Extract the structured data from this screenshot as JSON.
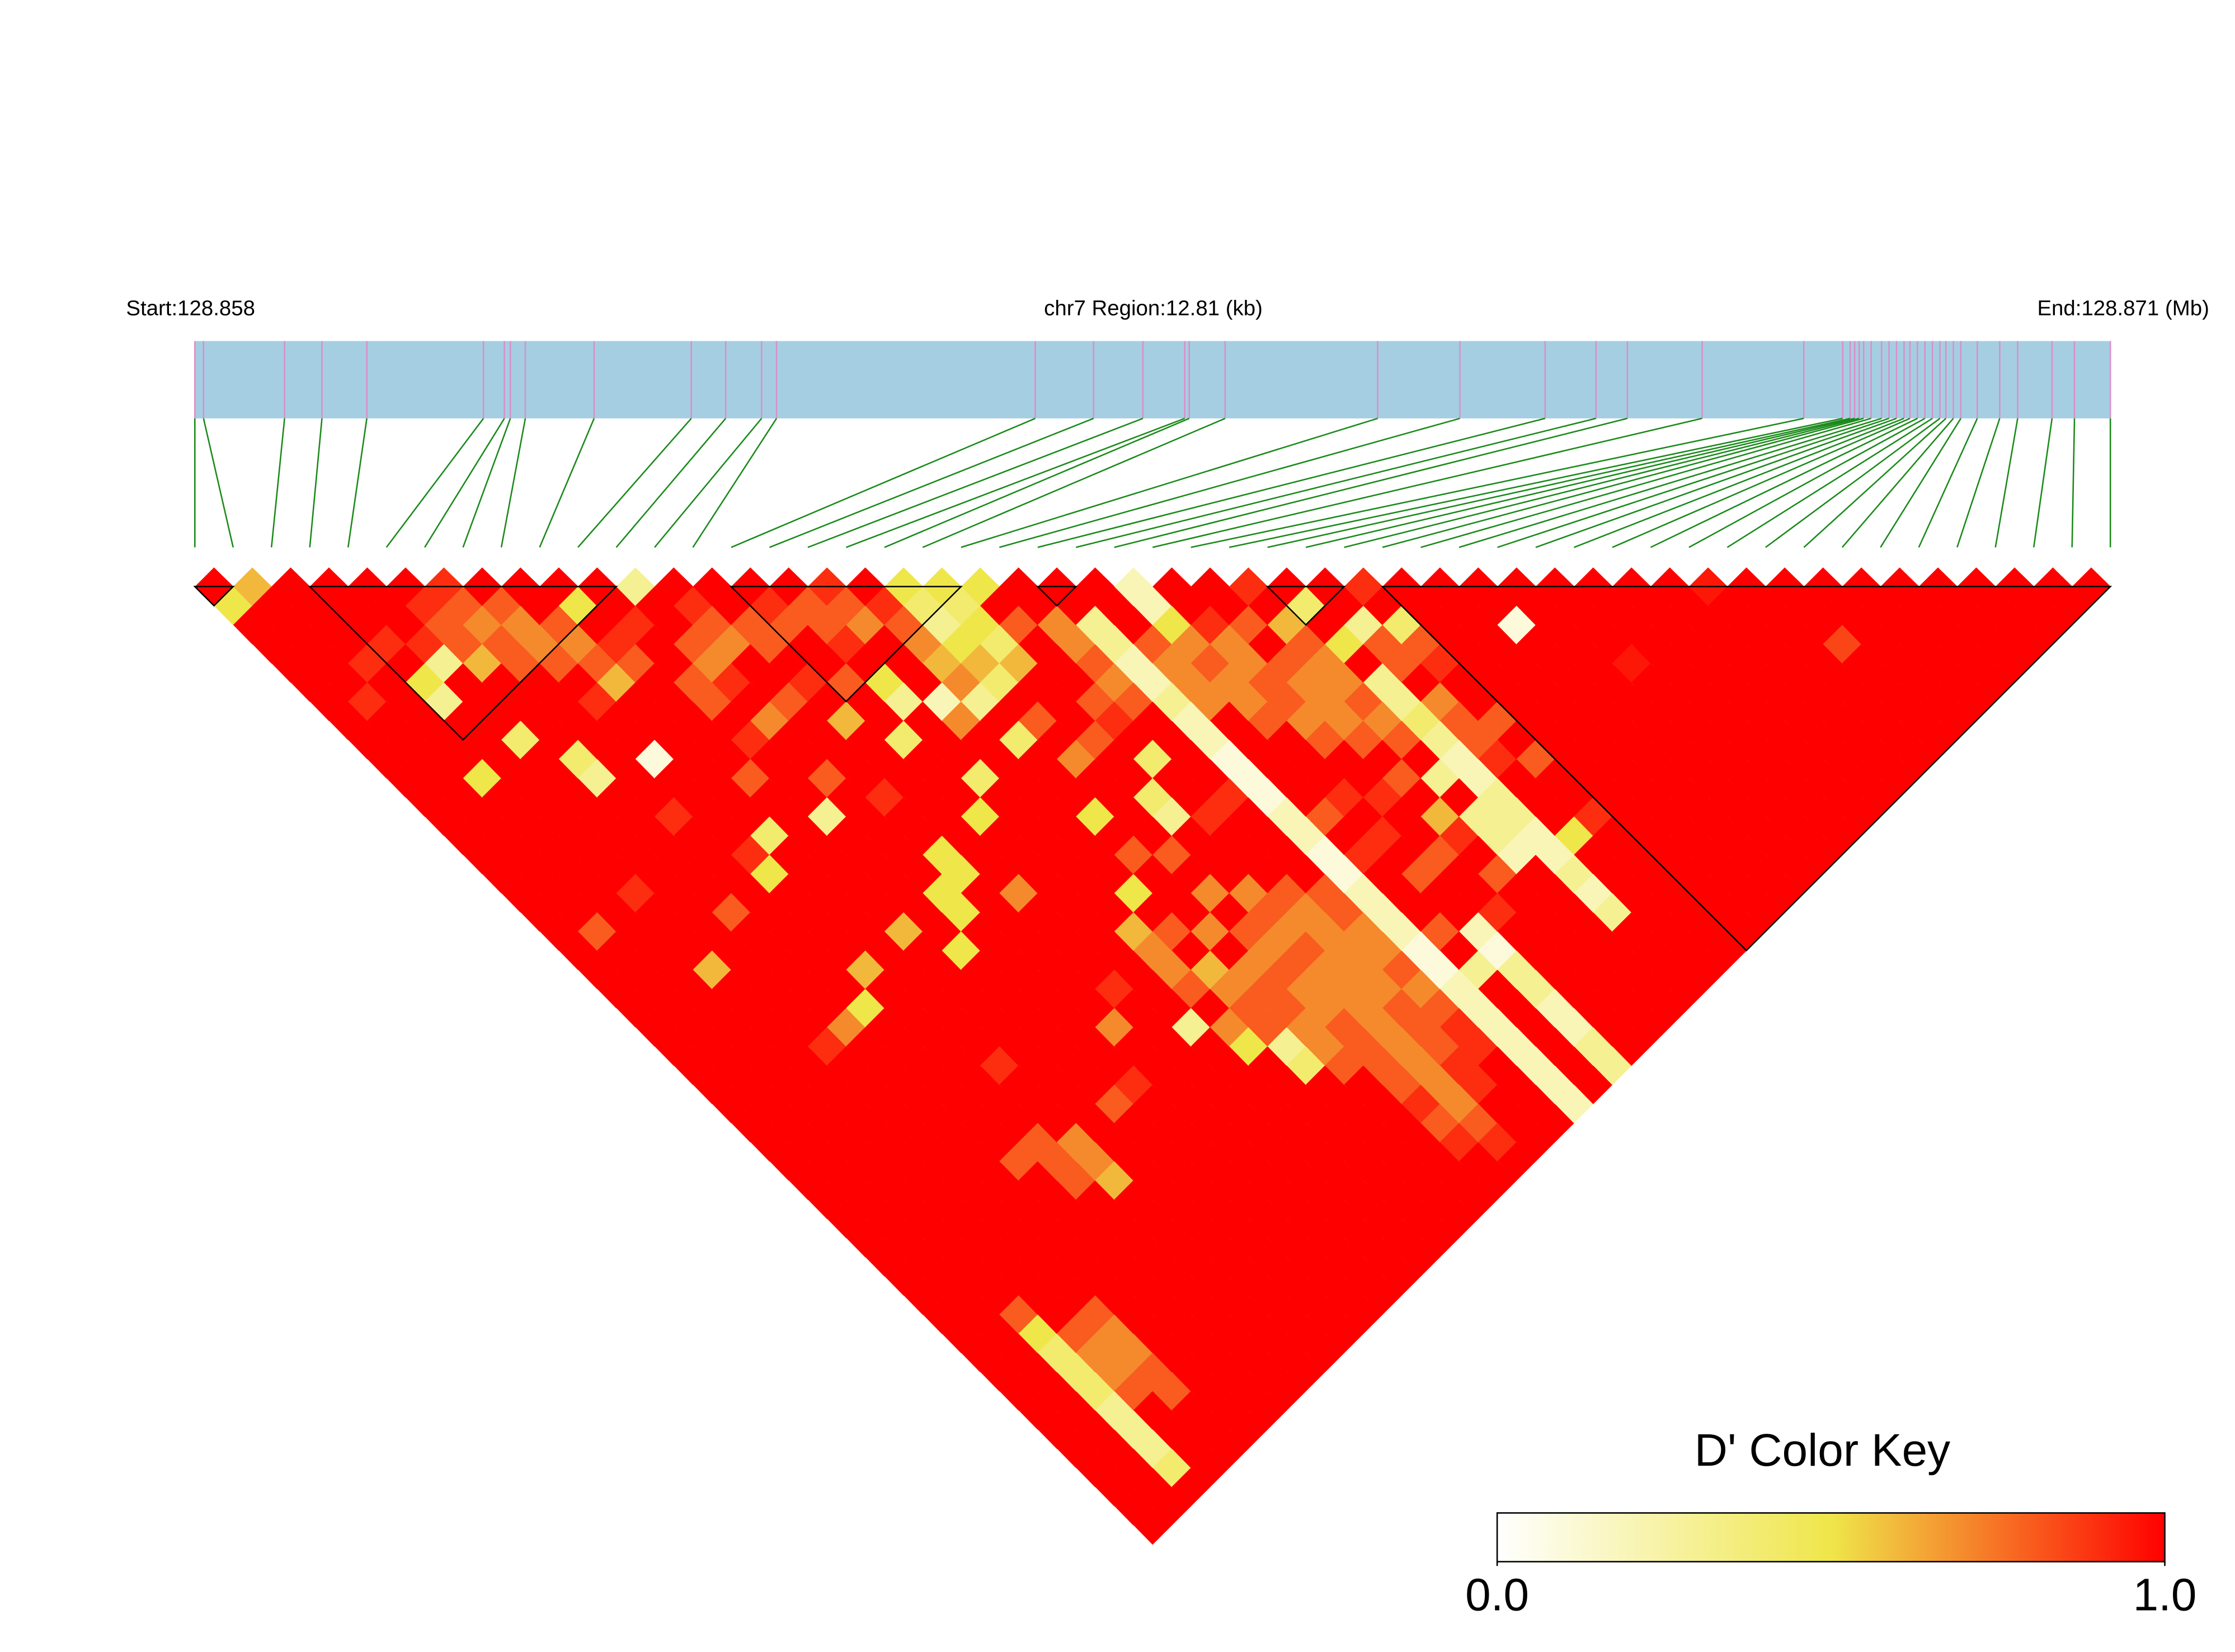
{
  "chart_data": {
    "type": "ld_heatmap",
    "start_label": "Start:128.858",
    "region_label": "chr7 Region:12.81 (kb)",
    "end_label": "End:128.871 (Mb)",
    "xlim": [
      0,
      12.81
    ],
    "positions": [
      0,
      0.058,
      0.6,
      0.85,
      1.15,
      1.93,
      2.07,
      2.11,
      2.21,
      2.67,
      3.32,
      3.55,
      3.79,
      3.89,
      5.62,
      6.01,
      6.34,
      6.62,
      6.65,
      6.89,
      7.91,
      8.46,
      9.03,
      9.37,
      9.58,
      10.08,
      10.76,
      11.02,
      11.07,
      11.1,
      11.13,
      11.16,
      11.21,
      11.28,
      11.33,
      11.38,
      11.43,
      11.47,
      11.52,
      11.57,
      11.62,
      11.67,
      11.71,
      11.76,
      11.81,
      11.92,
      12.07,
      12.19,
      12.42,
      12.57,
      12.81
    ],
    "bar_color": "#a6cee3",
    "marker_color": "#d98fc9",
    "connector_color": "#1a8a1a",
    "block_color": "#000000",
    "values": [
      [
        1,
        0.5,
        1,
        1,
        1,
        1,
        1,
        1,
        1,
        1,
        1,
        1,
        1,
        1,
        1,
        1,
        1,
        1,
        1,
        1,
        1,
        1,
        1,
        1,
        1,
        1,
        1,
        1,
        1,
        1,
        1,
        1,
        1,
        1,
        1,
        1,
        1,
        1,
        1,
        1,
        1,
        1,
        1,
        1,
        1,
        1,
        1,
        1,
        1,
        1
      ],
      [
        0.6,
        1,
        1,
        1,
        1,
        1,
        0.9,
        1,
        1,
        1,
        1,
        1,
        1,
        1,
        1,
        1,
        1,
        1,
        0.8,
        1,
        1,
        1,
        1,
        1,
        1,
        1,
        1,
        1,
        1,
        1,
        1,
        1,
        1,
        1,
        1,
        1,
        1,
        1,
        1,
        1,
        1,
        1,
        1,
        1,
        1,
        1,
        1,
        1,
        1
      ],
      [
        1,
        1,
        1,
        1,
        0.9,
        1,
        1,
        1,
        1,
        1,
        0.5,
        1,
        1,
        1,
        1,
        1,
        1,
        1,
        1,
        1,
        1,
        1,
        1,
        1,
        1,
        1,
        1,
        1,
        1,
        1,
        1,
        1,
        1,
        1,
        1,
        1,
        1,
        1,
        0.8,
        0.5,
        0.4,
        0.4,
        0.4,
        0.3,
        0.3,
        0.3,
        0.4,
        1
      ],
      [
        1,
        1,
        1,
        0.9,
        1,
        0.5,
        0.3,
        1,
        1,
        1,
        1,
        1,
        1,
        1,
        1,
        1,
        0.9,
        1,
        1,
        1,
        0.6,
        1,
        1,
        1,
        1,
        1,
        1,
        1,
        1,
        1,
        1,
        1,
        1,
        1,
        1,
        1,
        1,
        1,
        1,
        0.8,
        0.7,
        0.7,
        0.8,
        1,
        1,
        1,
        1
      ],
      [
        1,
        1,
        1,
        0.9,
        0.3,
        1,
        1,
        1,
        0.4,
        1,
        1,
        1,
        1,
        1,
        1,
        1,
        1,
        1,
        1,
        1,
        1,
        1,
        1,
        1,
        0.9,
        1,
        1,
        1,
        1,
        1,
        1,
        1,
        1,
        1,
        1,
        1,
        1,
        1,
        0.8,
        0.7,
        0.7,
        0.8,
        0.8,
        1,
        1,
        1
      ],
      [
        1,
        0.9,
        0.8,
        0.8,
        0.6,
        1,
        1,
        1,
        1,
        0.4,
        0.3,
        1,
        1,
        1,
        1,
        1,
        1,
        0.8,
        1,
        1,
        1,
        1,
        1,
        0.7,
        1,
        1,
        1,
        1,
        1,
        1,
        1,
        1,
        1,
        1,
        1,
        1,
        1,
        1,
        1,
        1,
        1,
        1,
        1,
        1,
        1
      ],
      [
        0.9,
        0.8,
        0.7,
        0.8,
        0.8,
        1,
        1,
        1,
        1,
        1,
        1,
        1,
        0.9,
        1,
        1,
        1,
        1,
        1,
        1,
        1,
        1,
        1,
        0.5,
        1,
        1,
        1,
        1,
        1,
        1,
        1,
        0.8,
        1,
        1,
        1,
        1,
        1,
        1,
        1,
        1,
        1,
        1,
        1,
        1,
        1
      ],
      [
        1,
        0.8,
        0.7,
        0.7,
        0.8,
        1,
        0.9,
        1,
        1,
        0.1,
        1,
        1,
        1,
        1,
        0.9,
        0.5,
        1,
        1,
        1,
        1,
        0.6,
        1,
        1,
        1,
        1,
        1,
        1,
        1,
        1,
        0.8,
        0.8,
        0.8,
        1,
        1,
        1,
        1,
        1,
        1,
        1,
        1,
        1,
        1,
        1
      ],
      [
        1,
        1,
        0.8,
        0.7,
        0.8,
        0.6,
        1,
        1,
        1,
        1,
        1,
        1,
        1,
        0.4,
        1,
        1,
        1,
        1,
        1,
        1,
        1,
        1,
        1,
        1,
        1,
        0.9,
        1,
        1,
        1,
        0.7,
        0.7,
        0.6,
        1,
        1,
        1,
        1,
        1,
        1,
        1,
        1,
        1,
        1
      ],
      [
        1,
        0.5,
        1,
        0.9,
        0.8,
        1,
        1,
        1,
        1,
        1,
        0.8,
        1,
        1,
        1,
        1,
        1,
        1,
        1,
        0.6,
        1,
        1,
        1,
        1,
        1,
        1,
        1,
        1,
        1,
        1,
        1,
        1,
        1,
        1,
        1,
        1,
        1,
        1,
        1,
        1,
        1,
        1
      ],
      [
        1,
        1,
        0.9,
        1,
        1,
        0.8,
        0.8,
        1,
        0.9,
        1,
        1,
        1,
        0.3,
        1,
        1,
        1,
        1,
        1,
        1,
        0.5,
        1,
        1,
        1,
        1,
        1,
        1,
        1,
        0.8,
        1,
        1,
        1,
        1,
        1,
        1,
        1,
        1,
        1,
        1,
        1,
        1
      ],
      [
        0.3,
        1,
        1,
        0.8,
        0.7,
        0.9,
        1,
        0.7,
        1,
        1,
        0.8,
        1,
        1,
        1,
        1,
        1,
        0.5,
        0.5,
        1,
        1,
        1,
        1,
        1,
        1,
        1,
        1,
        0.9,
        1,
        1,
        1,
        1,
        1,
        1,
        1,
        1,
        1,
        1,
        1,
        1
      ],
      [
        1,
        0.9,
        0.8,
        0.7,
        1,
        1,
        0.8,
        1,
        1,
        1,
        1,
        0.9,
        1,
        1,
        0.5,
        0.5,
        1,
        1,
        1,
        1,
        1,
        1,
        1,
        0.7,
        1,
        1,
        1,
        1,
        1,
        1,
        1,
        1,
        1,
        1,
        1,
        1,
        1,
        1
      ],
      [
        1,
        1,
        0.8,
        0.8,
        1,
        0.9,
        1,
        0.6,
        1,
        1,
        1,
        1,
        1,
        1,
        1,
        1,
        0.7,
        1,
        1,
        1,
        1,
        0.9,
        1,
        1,
        1,
        1,
        1,
        1,
        1,
        1,
        1,
        1,
        1,
        1,
        1,
        1,
        1
      ],
      [
        1,
        0.9,
        0.8,
        1,
        1,
        0.8,
        1,
        1,
        0.4,
        1,
        1,
        1,
        0.5,
        1,
        1,
        1,
        1,
        1,
        1,
        1,
        1,
        1,
        1,
        0.3,
        1,
        1,
        1,
        1,
        1,
        1,
        1,
        1,
        1,
        1,
        1,
        1
      ],
      [
        1,
        0.8,
        0.8,
        0.9,
        1,
        0.5,
        0.3,
        1,
        1,
        1,
        0.4,
        1,
        1,
        1,
        1,
        1,
        1,
        1,
        0.6,
        0.7,
        0.7,
        0.8,
        1,
        0.7,
        0.5,
        1,
        1,
        1,
        1,
        1,
        1,
        1,
        1,
        1,
        1
      ],
      [
        0.9,
        0.8,
        0.7,
        1,
        1,
        1,
        0.2,
        0.7,
        1,
        1,
        1,
        1,
        1,
        1,
        1,
        1,
        0.5,
        1,
        0.8,
        1,
        0.6,
        0.7,
        0.8,
        0.8,
        0.3,
        0.4,
        1,
        1,
        1,
        1,
        1,
        1,
        1,
        1
      ],
      [
        1,
        0.9,
        0.8,
        0.7,
        0.6,
        0.7,
        0.3,
        1,
        0.4,
        1,
        1,
        1,
        0.5,
        1,
        0.8,
        1,
        1,
        1,
        0.7,
        1,
        0.7,
        0.8,
        0.8,
        0.7,
        0.7,
        0.8,
        1,
        1,
        1,
        1,
        1,
        1,
        1
      ],
      [
        0.5,
        0.4,
        0.3,
        0.5,
        0.6,
        0.4,
        1,
        0.8,
        1,
        0.7,
        1,
        1,
        1,
        1,
        0.8,
        1,
        0.7,
        1,
        0.8,
        0.7,
        0.8,
        0.7,
        0.7,
        0.8,
        0.8,
        0.8,
        0.8,
        0.9,
        0.8,
        0.9,
        1,
        1
      ],
      [
        0.5,
        0.4,
        0.5,
        0.4,
        0.6,
        1,
        1,
        1,
        0.8,
        1,
        1,
        0.4,
        0.3,
        1,
        1,
        1,
        0.7,
        0.8,
        0.7,
        0.8,
        0.7,
        0.7,
        0.7,
        0.7,
        0.7,
        0.7,
        0.7,
        0.7,
        0.8,
        0.9,
        1
      ],
      [
        0.5,
        1,
        0.8,
        1,
        1,
        1,
        0.8,
        0.9,
        1,
        0.4,
        1,
        1,
        0.9,
        1,
        1,
        1,
        0.8,
        0.7,
        0.7,
        0.7,
        0.7,
        0.7,
        0.8,
        0.8,
        0.8,
        0.9,
        0.9,
        1,
        1,
        1
      ],
      [
        1,
        1,
        0.7,
        0.7,
        0.8,
        0.7,
        0.8,
        1,
        1,
        1,
        1,
        0.9,
        1,
        1,
        1,
        1,
        0.8,
        0.8,
        0.7,
        0.7,
        0.8,
        0.7,
        0.8,
        0.9,
        0.9,
        1,
        1,
        1,
        1
      ],
      [
        1,
        1,
        0.3,
        0.3,
        0.2,
        0.2,
        0.3,
        0.2,
        0.2,
        0.1,
        0.1,
        0.1,
        0.2,
        0.2,
        0.1,
        0.1,
        0.2,
        0.2,
        0.2,
        0.1,
        0.1,
        0.2,
        0.2,
        0.2,
        0.2,
        0.2,
        0.2,
        0.2
      ],
      [
        1,
        1,
        1,
        0.8,
        0.7,
        0.7,
        0.7,
        1,
        1,
        1,
        1,
        1,
        0.8,
        1,
        0.9,
        1,
        1,
        1,
        0.8,
        1,
        0.3,
        1,
        1,
        1,
        1,
        1,
        1
      ],
      [
        0.2,
        0.2,
        0.5,
        0.7,
        0.8,
        0.7,
        0.7,
        0.8,
        1,
        1,
        1,
        0.9,
        1,
        0.9,
        1,
        0.8,
        1,
        1,
        0.2,
        0.1,
        0.3,
        0.3,
        0.2,
        0.2,
        0.3,
        0.3
      ],
      [
        1,
        1,
        0.9,
        0.7,
        0.7,
        0.8,
        0.8,
        0.7,
        0.8,
        1,
        1,
        0.9,
        1,
        1,
        0.8,
        1,
        1,
        0.9,
        1,
        1,
        1,
        1,
        1,
        1,
        1
      ],
      [
        1,
        1,
        0.8,
        1,
        0.8,
        0.7,
        0.7,
        0.7,
        0.8,
        1,
        0.8,
        1,
        0.6,
        0.9,
        1,
        0.8,
        1,
        1,
        1,
        1,
        1,
        1,
        1,
        1
      ],
      [
        0.9,
        1,
        0.6,
        0.8,
        0.7,
        0.7,
        0.8,
        0.7,
        0.8,
        1,
        0.3,
        1,
        0.3,
        0.3,
        0.2,
        1,
        1,
        1,
        1,
        1,
        1,
        1,
        1
      ],
      [
        1,
        0.4,
        1,
        0.5,
        1,
        0.3,
        0.3,
        0.4,
        0.3,
        0.2,
        0.2,
        0.3,
        0.3,
        0.2,
        0.2,
        0.3,
        0.2,
        0.3,
        1,
        1,
        1,
        1
      ],
      [
        1,
        1,
        0.3,
        0.8,
        0.8,
        1,
        0.7,
        0.8,
        0.8,
        0.9,
        1,
        1,
        1,
        0.5,
        1,
        1,
        1,
        1,
        1,
        1,
        1
      ],
      [
        0.9,
        1,
        0.4,
        0.8,
        0.9,
        1,
        1,
        0.8,
        1,
        0.8,
        1,
        1,
        0.9,
        1,
        1,
        1,
        1,
        1,
        1,
        1
      ],
      [
        1,
        1,
        1,
        1,
        1,
        1,
        1,
        1,
        1,
        1,
        1,
        1,
        1,
        1,
        1,
        1,
        1,
        1,
        1
      ],
      [
        1,
        1,
        1,
        1,
        1,
        1,
        1,
        1,
        1,
        1,
        1,
        1,
        1,
        1,
        1,
        1,
        1,
        1
      ],
      [
        1,
        1,
        0.1,
        1,
        1,
        1,
        1,
        1,
        1,
        1,
        1,
        1,
        1,
        1,
        1,
        1,
        1
      ],
      [
        1,
        1,
        1,
        1,
        1,
        1,
        1,
        1,
        1,
        1,
        1,
        1,
        1,
        1,
        1,
        1
      ],
      [
        1,
        1,
        1,
        1,
        0.95,
        1,
        1,
        1,
        1,
        1,
        1,
        1,
        1,
        1,
        1
      ],
      [
        1,
        1,
        1,
        1,
        1,
        1,
        1,
        1,
        1,
        1,
        1,
        1,
        1,
        1
      ],
      [
        1,
        1,
        1,
        1,
        1,
        1,
        1,
        1,
        1,
        1,
        1,
        1,
        1
      ],
      [
        1,
        1,
        1,
        1,
        1,
        1,
        1,
        1,
        1,
        1,
        1,
        1
      ],
      [
        0.95,
        1,
        1,
        1,
        1,
        1,
        1,
        1,
        1,
        1,
        1
      ],
      [
        1,
        1,
        1,
        1,
        1,
        1,
        1,
        1,
        1,
        1
      ],
      [
        1,
        1,
        1,
        0.85,
        1,
        1,
        1,
        1,
        1
      ],
      [
        1,
        1,
        1,
        1,
        1,
        1,
        1,
        1
      ],
      [
        1,
        1,
        1,
        1,
        1,
        1,
        1
      ],
      [
        1,
        1,
        1,
        1,
        1,
        1
      ],
      [
        1,
        1,
        1,
        1,
        1
      ],
      [
        1,
        1,
        1,
        1
      ],
      [
        1,
        1,
        1
      ],
      [
        1,
        1
      ],
      [
        1
      ]
    ],
    "blocks": [
      [
        0,
        1
      ],
      [
        3,
        11
      ],
      [
        14,
        20
      ],
      [
        22,
        23
      ],
      [
        28,
        30
      ],
      [
        31,
        50
      ]
    ],
    "colorbar": {
      "title": "D' Color Key",
      "colors": [
        "#ffffff",
        "#efe64a",
        "#ff0000"
      ],
      "ticks": [
        {
          "value": 0,
          "label": "0.0"
        },
        {
          "value": 1,
          "label": "1.0"
        }
      ]
    }
  }
}
